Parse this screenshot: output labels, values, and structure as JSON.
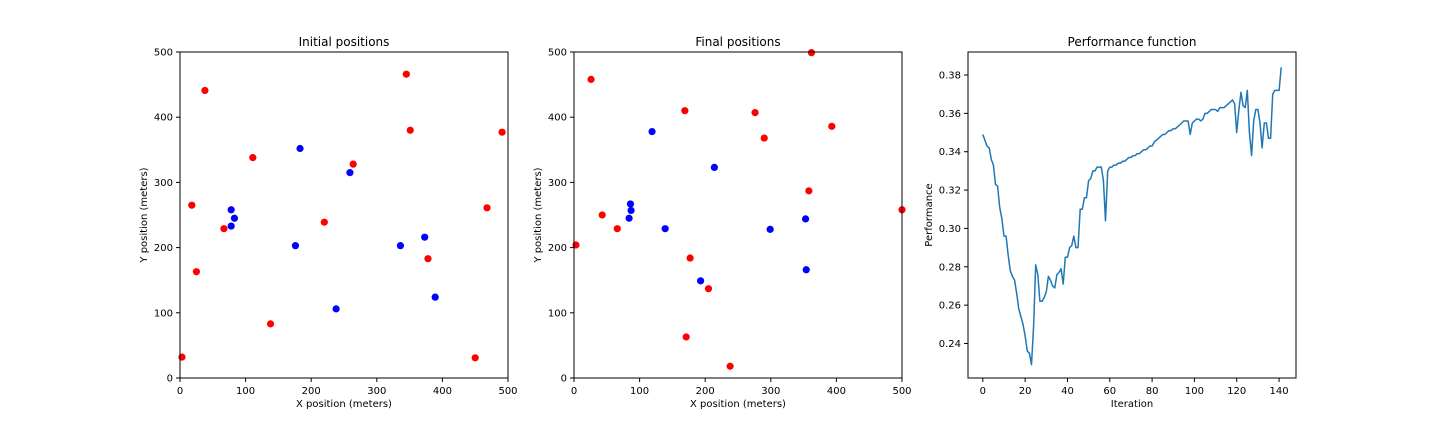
{
  "colors": {
    "red": "#ff0000",
    "blue": "#0000ff",
    "line": "#1f77b4"
  },
  "chart_data": [
    {
      "type": "scatter",
      "title": "Initial positions",
      "xlabel": "X position (meters)",
      "ylabel": "Y position (meters)",
      "xlim": [
        0,
        500
      ],
      "ylim": [
        0,
        500
      ],
      "xticks": [
        0,
        100,
        200,
        300,
        400,
        500
      ],
      "yticks": [
        0,
        100,
        200,
        300,
        400,
        500
      ],
      "grid": false,
      "series": [
        {
          "color": "#ff0000",
          "points": [
            [
              3,
              32
            ],
            [
              18,
              265
            ],
            [
              25,
              163
            ],
            [
              38,
              441
            ],
            [
              67,
              229
            ],
            [
              111,
              338
            ],
            [
              138,
              83
            ],
            [
              220,
              239
            ],
            [
              264,
              328
            ],
            [
              345,
              466
            ],
            [
              351,
              380
            ],
            [
              378,
              183
            ],
            [
              450,
              31
            ],
            [
              468,
              261
            ],
            [
              491,
              377
            ]
          ]
        },
        {
          "color": "#0000ff",
          "points": [
            [
              78,
              258
            ],
            [
              78,
              233
            ],
            [
              83,
              245
            ],
            [
              176,
              203
            ],
            [
              183,
              352
            ],
            [
              238,
              106
            ],
            [
              259,
              315
            ],
            [
              336,
              203
            ],
            [
              373,
              216
            ],
            [
              389,
              124
            ]
          ]
        }
      ]
    },
    {
      "type": "scatter",
      "title": "Final positions",
      "xlabel": "X position (meters)",
      "ylabel": "Y position (meters)",
      "xlim": [
        0,
        500
      ],
      "ylim": [
        0,
        500
      ],
      "xticks": [
        0,
        100,
        200,
        300,
        400,
        500
      ],
      "yticks": [
        0,
        100,
        200,
        300,
        400,
        500
      ],
      "grid": false,
      "series": [
        {
          "color": "#ff0000",
          "points": [
            [
              3,
              204
            ],
            [
              26,
              458
            ],
            [
              43,
              250
            ],
            [
              66,
              229
            ],
            [
              169,
              410
            ],
            [
              171,
              63
            ],
            [
              177,
              184
            ],
            [
              205,
              137
            ],
            [
              238,
              18
            ],
            [
              276,
              407
            ],
            [
              290,
              368
            ],
            [
              358,
              287
            ],
            [
              362,
              499
            ],
            [
              393,
              386
            ],
            [
              500,
              258
            ]
          ]
        },
        {
          "color": "#0000ff",
          "points": [
            [
              84,
              245
            ],
            [
              86,
              267
            ],
            [
              87,
              257
            ],
            [
              119,
              378
            ],
            [
              139,
              229
            ],
            [
              193,
              149
            ],
            [
              214,
              323
            ],
            [
              299,
              228
            ],
            [
              353,
              244
            ],
            [
              354,
              166
            ]
          ]
        }
      ]
    },
    {
      "type": "line",
      "title": "Performance function",
      "xlabel": "Iteration",
      "ylabel": "Performance",
      "xlim": [
        -7,
        148
      ],
      "ylim": [
        0.222,
        0.392
      ],
      "xticks": [
        0,
        20,
        40,
        60,
        80,
        100,
        120,
        140
      ],
      "yticks": [
        0.24,
        0.26,
        0.28,
        0.3,
        0.32,
        0.34,
        0.36,
        0.38
      ],
      "grid": false,
      "series": [
        {
          "color": "#1f77b4",
          "x": [
            0,
            1,
            2,
            3,
            4,
            5,
            6,
            7,
            8,
            9,
            10,
            11,
            12,
            13,
            14,
            15,
            16,
            17,
            18,
            19,
            20,
            21,
            22,
            23,
            24,
            25,
            26,
            27,
            28,
            29,
            30,
            31,
            32,
            33,
            34,
            35,
            36,
            37,
            38,
            39,
            40,
            41,
            42,
            43,
            44,
            45,
            46,
            47,
            48,
            49,
            50,
            51,
            52,
            53,
            54,
            55,
            56,
            57,
            58,
            59,
            60,
            61,
            62,
            63,
            64,
            65,
            66,
            67,
            68,
            69,
            70,
            71,
            72,
            73,
            74,
            75,
            76,
            77,
            78,
            79,
            80,
            81,
            82,
            83,
            84,
            85,
            86,
            87,
            88,
            89,
            90,
            91,
            92,
            93,
            94,
            95,
            96,
            97,
            98,
            99,
            100,
            101,
            102,
            103,
            104,
            105,
            106,
            107,
            108,
            109,
            110,
            111,
            112,
            113,
            114,
            115,
            116,
            117,
            118,
            119,
            120,
            121,
            122,
            123,
            124,
            125,
            126,
            127,
            128,
            129,
            130,
            131,
            132,
            133,
            134,
            135,
            136,
            137,
            138,
            139,
            140,
            141
          ],
          "y": [
            0.349,
            0.346,
            0.343,
            0.342,
            0.336,
            0.333,
            0.323,
            0.322,
            0.311,
            0.305,
            0.296,
            0.296,
            0.286,
            0.278,
            0.275,
            0.273,
            0.266,
            0.258,
            0.254,
            0.25,
            0.244,
            0.236,
            0.235,
            0.229,
            0.249,
            0.281,
            0.276,
            0.262,
            0.262,
            0.264,
            0.267,
            0.275,
            0.273,
            0.27,
            0.269,
            0.276,
            0.277,
            0.279,
            0.271,
            0.285,
            0.285,
            0.29,
            0.291,
            0.296,
            0.29,
            0.29,
            0.31,
            0.31,
            0.316,
            0.316,
            0.325,
            0.326,
            0.33,
            0.33,
            0.332,
            0.332,
            0.332,
            0.325,
            0.304,
            0.33,
            0.332,
            0.332,
            0.333,
            0.333,
            0.334,
            0.334,
            0.335,
            0.335,
            0.336,
            0.337,
            0.337,
            0.338,
            0.338,
            0.339,
            0.339,
            0.34,
            0.341,
            0.341,
            0.342,
            0.343,
            0.343,
            0.345,
            0.346,
            0.347,
            0.348,
            0.349,
            0.349,
            0.35,
            0.351,
            0.351,
            0.352,
            0.352,
            0.353,
            0.354,
            0.355,
            0.356,
            0.356,
            0.356,
            0.349,
            0.355,
            0.356,
            0.357,
            0.357,
            0.356,
            0.357,
            0.36,
            0.36,
            0.361,
            0.362,
            0.362,
            0.362,
            0.361,
            0.363,
            0.363,
            0.363,
            0.364,
            0.365,
            0.366,
            0.367,
            0.365,
            0.35,
            0.362,
            0.371,
            0.364,
            0.363,
            0.372,
            0.35,
            0.338,
            0.356,
            0.362,
            0.362,
            0.355,
            0.342,
            0.355,
            0.355,
            0.347,
            0.347,
            0.37,
            0.372,
            0.372,
            0.372,
            0.384
          ]
        }
      ]
    }
  ]
}
